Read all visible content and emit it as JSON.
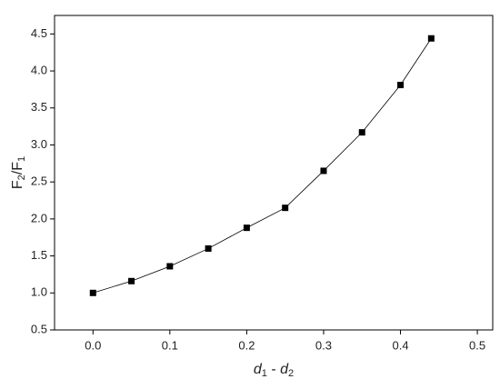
{
  "chart_data": {
    "type": "line",
    "x": [
      0,
      0.05,
      0.1,
      0.15,
      0.2,
      0.25,
      0.3,
      0.35,
      0.4,
      0.44
    ],
    "series": [
      {
        "color": "#000000",
        "values": [
          1.0,
          1.16,
          1.36,
          1.6,
          1.88,
          2.15,
          2.65,
          3.17,
          3.81,
          4.44
        ]
      }
    ],
    "xlim": [
      -0.05,
      0.52
    ],
    "ylim": [
      0.5,
      4.75
    ],
    "xticks": [
      {
        "value": 0,
        "label": "0.0"
      },
      0.1,
      0.2,
      0.3,
      0.4,
      0.5
    ],
    "yticks": [
      0.5,
      {
        "value": 1,
        "label": "1.0"
      },
      1.5,
      {
        "value": 2,
        "label": "2.0"
      },
      2.5,
      {
        "value": 3,
        "label": "3.0"
      },
      3.5,
      {
        "value": 4,
        "label": "4.0"
      },
      4.5
    ],
    "xlabel": [
      "d",
      "1",
      " - ",
      "d",
      "2"
    ],
    "ylabel": [
      "F",
      "2",
      "/F",
      "1"
    ]
  }
}
